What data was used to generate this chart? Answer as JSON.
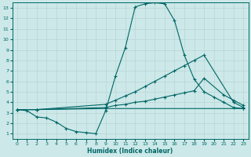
{
  "xlabel": "Humidex (Indice chaleur)",
  "bg_color": "#cce8e8",
  "grid_color": "#b8d4d4",
  "line_color": "#006666",
  "xlim": [
    -0.5,
    23.5
  ],
  "ylim": [
    0.5,
    13.5
  ],
  "xticks": [
    0,
    1,
    2,
    3,
    4,
    5,
    6,
    7,
    8,
    9,
    10,
    11,
    12,
    13,
    14,
    15,
    16,
    17,
    18,
    19,
    20,
    21,
    22,
    23
  ],
  "yticks": [
    1,
    2,
    3,
    4,
    5,
    6,
    7,
    8,
    9,
    10,
    11,
    12,
    13
  ],
  "line1_x": [
    0,
    1,
    2,
    3,
    4,
    5,
    6,
    7,
    8,
    9,
    10,
    11,
    12,
    13,
    14,
    15,
    16,
    17,
    18,
    19,
    20,
    21,
    22,
    23
  ],
  "line1_y": [
    3.3,
    3.2,
    2.6,
    2.5,
    2.1,
    1.5,
    1.2,
    1.1,
    1.0,
    3.2,
    6.5,
    9.2,
    13.1,
    13.4,
    13.5,
    13.4,
    11.8,
    8.5,
    6.2,
    5.0,
    4.5,
    4.0,
    3.5,
    3.4
  ],
  "line2_x": [
    0,
    2,
    9,
    10,
    11,
    12,
    13,
    14,
    15,
    16,
    17,
    18,
    19,
    22,
    23
  ],
  "line2_y": [
    3.3,
    3.3,
    3.8,
    4.2,
    4.6,
    5.0,
    5.5,
    6.0,
    6.5,
    7.0,
    7.5,
    8.0,
    8.5,
    4.0,
    3.5
  ],
  "line3_x": [
    0,
    2,
    9,
    10,
    11,
    12,
    13,
    14,
    15,
    16,
    17,
    18,
    19,
    21,
    22,
    23
  ],
  "line3_y": [
    3.3,
    3.3,
    3.5,
    3.7,
    3.8,
    4.0,
    4.1,
    4.3,
    4.5,
    4.7,
    4.9,
    5.1,
    6.3,
    4.7,
    4.2,
    3.7
  ],
  "line4_x": [
    0,
    2,
    9,
    23
  ],
  "line4_y": [
    3.3,
    3.3,
    3.4,
    3.4
  ]
}
